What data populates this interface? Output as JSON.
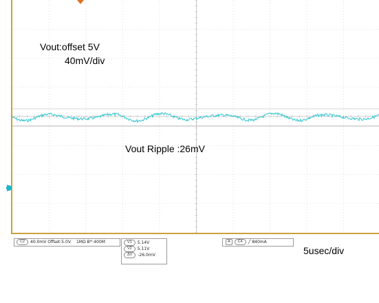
{
  "annotations": {
    "vout_offset": "Vout:offset 5V",
    "vout_scale": "40mV/div",
    "vout_ripple": "Vout Ripple :26mV",
    "timebase": "5usec/div"
  },
  "status_bar": {
    "channel_chip": "C2",
    "channel_settings": "40.0mV  Offset:5.0V",
    "impedance_bw": "1MΩ  Bᵂ:400M",
    "measurements": [
      {
        "chip": "V1",
        "value": "5.14V"
      },
      {
        "chip": "V2",
        "value": "5.11V"
      },
      {
        "chip": "ΔV",
        "value": "-26.0mV"
      }
    ],
    "trigger_icon": "A",
    "trigger_chip": "C4",
    "trigger_value": "840mA"
  },
  "colors": {
    "trace": "#31c6d0",
    "graticule": "#c9c9c9",
    "frame": "#c9a13a",
    "marker_orange": "#e07020",
    "marker_cyan": "#1ab7c9"
  }
}
